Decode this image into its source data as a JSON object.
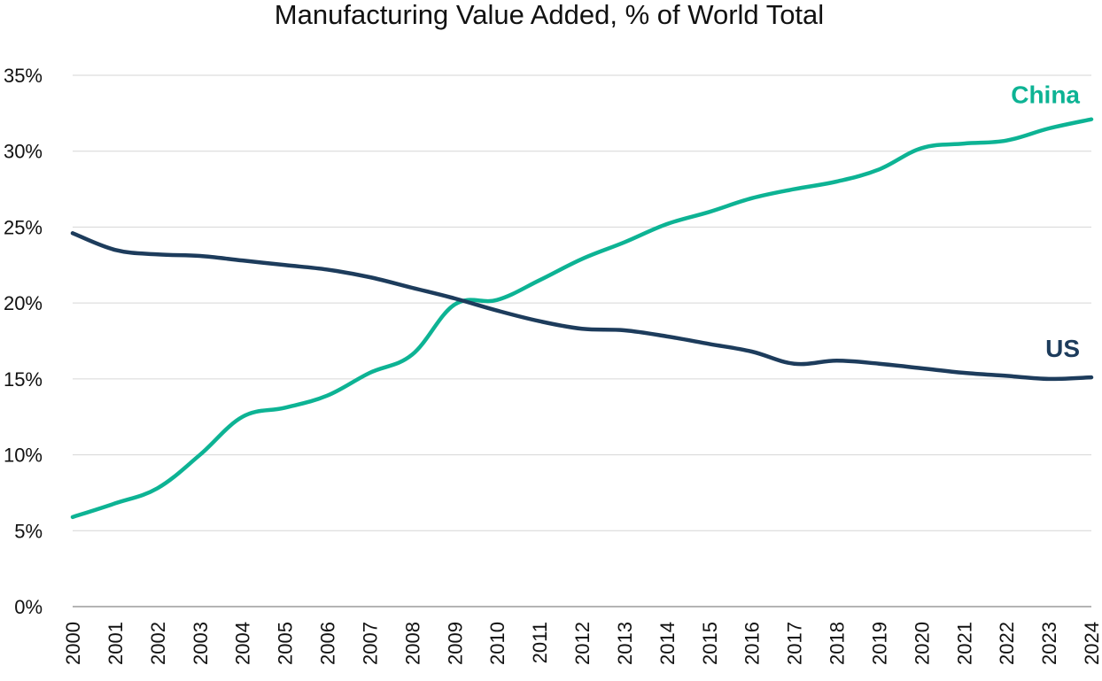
{
  "chart_data": {
    "type": "line",
    "title": "Manufacturing Value Added, % of World Total",
    "xlabel": "",
    "ylabel": "",
    "categories": [
      "2000",
      "2001",
      "2002",
      "2003",
      "2004",
      "2005",
      "2006",
      "2007",
      "2008",
      "2009",
      "2010",
      "2011",
      "2012",
      "2013",
      "2014",
      "2015",
      "2016",
      "2017",
      "2018",
      "2019",
      "2020",
      "2021",
      "2022",
      "2023",
      "2024"
    ],
    "ylim": [
      0,
      35
    ],
    "yticks": [
      0,
      5,
      10,
      15,
      20,
      25,
      30,
      35
    ],
    "ytick_labels": [
      "0%",
      "5%",
      "10%",
      "15%",
      "20%",
      "25%",
      "30%",
      "35%"
    ],
    "grid": true,
    "legend": "direct labels at right end of lines",
    "series": [
      {
        "name": "China",
        "color": "#0db394",
        "values": [
          5.9,
          6.8,
          7.8,
          10.0,
          12.5,
          13.1,
          13.9,
          15.4,
          16.6,
          19.9,
          20.2,
          21.5,
          22.9,
          24.0,
          25.2,
          26.0,
          26.9,
          27.5,
          28.0,
          28.8,
          30.2,
          30.5,
          30.7,
          31.5,
          32.1
        ]
      },
      {
        "name": "US",
        "color": "#1d3c5c",
        "values": [
          24.6,
          23.5,
          23.2,
          23.1,
          22.8,
          22.5,
          22.2,
          21.7,
          21.0,
          20.3,
          19.5,
          18.8,
          18.3,
          18.2,
          17.8,
          17.3,
          16.8,
          16.0,
          16.2,
          16.0,
          15.7,
          15.4,
          15.2,
          15.0,
          15.1
        ]
      }
    ]
  }
}
